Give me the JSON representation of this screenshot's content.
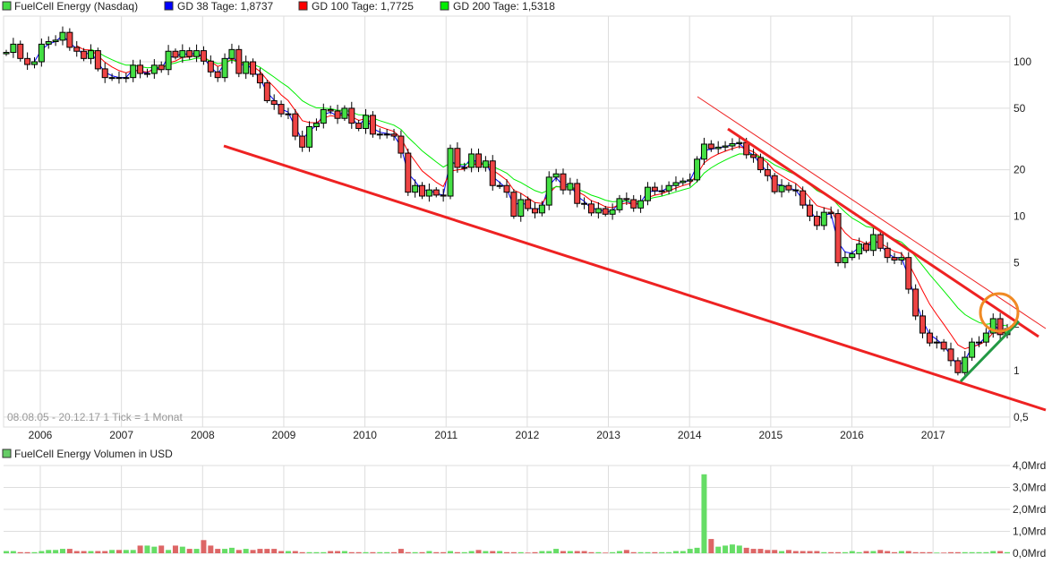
{
  "legend": {
    "main": {
      "label": "FuelCell Energy (Nasdaq)",
      "color": "#44dd44"
    },
    "gd38": {
      "label": "GD 38 Tage: 1,8737",
      "color": "#0000ff"
    },
    "gd100": {
      "label": "GD 100 Tage: 1,7725",
      "color": "#ff0000"
    },
    "gd200": {
      "label": "GD 200 Tage: 1,5318",
      "color": "#00ee00"
    },
    "volume": {
      "label": "FuelCell Energy Volumen in USD",
      "color": "#66cc66"
    }
  },
  "info": "08.08.05 - 20.12.17   1 Tick = 1 Monat",
  "chart_data": [
    {
      "type": "candlestick",
      "scale": "log",
      "period": "monthly",
      "date_range": [
        "08.08.05",
        "20.12.17"
      ],
      "x_ticks": [
        "2006",
        "2007",
        "2008",
        "2009",
        "2010",
        "2011",
        "2012",
        "2013",
        "2014",
        "2015",
        "2016",
        "2017"
      ],
      "y_ticks": [
        "100",
        "50",
        "20",
        "10",
        "5",
        "2",
        "1",
        "0,5"
      ],
      "y_tick_values": [
        100,
        50,
        20,
        10,
        5,
        2,
        1,
        0.5
      ],
      "ylim": [
        0.45,
        190
      ],
      "grid": true,
      "colors": {
        "up": "#44e044",
        "down": "#ee4444"
      },
      "close": [
        115,
        130,
        105,
        96,
        100,
        130,
        135,
        138,
        155,
        124,
        117,
        105,
        118,
        90,
        79,
        79,
        78,
        79,
        95,
        84,
        84,
        95,
        89,
        117,
        107,
        118,
        108,
        118,
        101,
        86,
        79,
        105,
        120,
        84,
        100,
        83,
        73,
        56,
        53,
        46,
        46,
        33,
        28,
        38,
        40,
        49,
        48,
        43,
        50,
        40,
        37,
        45,
        34,
        34,
        34,
        33,
        25.6,
        14.3,
        15.8,
        13.5,
        14.8,
        13.7,
        13.5,
        27.5,
        20.7,
        20.7,
        25.3,
        20.7,
        22.8,
        15.8,
        15.8,
        14.3,
        10,
        12.8,
        11.2,
        10.5,
        11.8,
        17.9,
        18.8,
        14.8,
        16.3,
        12.1,
        12,
        10.5,
        11.2,
        10.3,
        11,
        13,
        12.8,
        11.3,
        12.6,
        15.4,
        14.6,
        14.6,
        15.8,
        16.5,
        16.9,
        17.2,
        23.4,
        29.3,
        27.4,
        28,
        28.5,
        29.5,
        30,
        25,
        24,
        20,
        18.3,
        14.4,
        15.8,
        14.8,
        14.6,
        11.8,
        10,
        8.7,
        10.6,
        10.4,
        5,
        5.4,
        5.7,
        6.6,
        6,
        7.6,
        6.2,
        5.4,
        5.2,
        5.4,
        3.37,
        2.26,
        1.75,
        1.51,
        1.53,
        1.38,
        1.16,
        0.97,
        1.22,
        1.53,
        1.53,
        1.75,
        2.17,
        1.71,
        1.87
      ],
      "moving_averages": [
        {
          "name": "GD 38 Tage",
          "last": 1.8737,
          "color": "#0000ff"
        },
        {
          "name": "GD 100 Tage",
          "last": 1.7725,
          "color": "#ff0000"
        },
        {
          "name": "GD 200 Tage",
          "last": 1.5318,
          "color": "#00ee00"
        }
      ]
    },
    {
      "type": "bar",
      "title": "FuelCell Energy Volumen in USD",
      "y_ticks": [
        "4,0Mrd",
        "3,0Mrd",
        "2,0Mrd",
        "1,0Mrd",
        "0,0Mrd"
      ],
      "ylim": [
        0,
        4
      ],
      "unit": "Mrd",
      "values": [
        0.1,
        0.1,
        0.05,
        0.05,
        0.05,
        0.1,
        0.15,
        0.15,
        0.2,
        0.2,
        0.1,
        0.1,
        0.1,
        0.1,
        0.1,
        0.15,
        0.15,
        0.15,
        0.15,
        0.35,
        0.35,
        0.3,
        0.35,
        0.15,
        0.35,
        0.3,
        0.2,
        0.2,
        0.6,
        0.35,
        0.2,
        0.2,
        0.25,
        0.15,
        0.2,
        0.15,
        0.2,
        0.2,
        0.2,
        0.1,
        0.1,
        0.1,
        0.05,
        0.05,
        0.05,
        0.05,
        0.1,
        0.1,
        0.1,
        0.05,
        0.05,
        0.05,
        0.05,
        0.05,
        0.05,
        0.05,
        0.2,
        0.05,
        0.05,
        0.05,
        0.1,
        0.05,
        0.05,
        0.1,
        0.05,
        0.05,
        0.1,
        0.15,
        0.1,
        0.1,
        0.1,
        0.05,
        0.05,
        0.05,
        0.03,
        0.05,
        0.1,
        0.1,
        0.2,
        0.1,
        0.1,
        0.1,
        0.1,
        0.05,
        0.05,
        0.03,
        0.05,
        0.1,
        0.15,
        0.05,
        0.05,
        0.05,
        0.05,
        0.05,
        0.05,
        0.1,
        0.1,
        0.2,
        0.25,
        3.6,
        0.65,
        0.3,
        0.35,
        0.4,
        0.35,
        0.25,
        0.2,
        0.2,
        0.15,
        0.15,
        0.1,
        0.15,
        0.1,
        0.1,
        0.1,
        0.1,
        0.05,
        0.05,
        0.05,
        0.05,
        0.1,
        0.05,
        0.1,
        0.1,
        0.15,
        0.1,
        0.05,
        0.1,
        0.1,
        0.05,
        0.05,
        0.05,
        0.03,
        0.03,
        0.05,
        0.05,
        0.05,
        0.05,
        0.05,
        0.05,
        0.1,
        0.1,
        0.05
      ]
    }
  ]
}
